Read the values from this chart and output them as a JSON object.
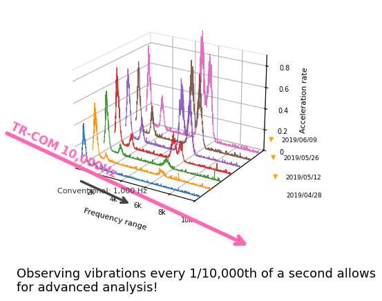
{
  "ylabel_3d": "Acceleration rate",
  "xlabel_3d": "Frequency range",
  "dates": [
    "2019/04/28",
    "2019/05/12",
    "2019/05/26",
    "2019/06/09"
  ],
  "line_colors": [
    "#1a6faf",
    "#ff8c00",
    "#2e8b22",
    "#cc2222",
    "#8855bb",
    "#7a5040",
    "#dd66bb"
  ],
  "arrow_color_conv": "#444444",
  "arrow_color_trcom": "#ff69b4",
  "conv_label": "Conventional: 1,000 Hz",
  "trcom_label": "TR-COM 10,000Hz",
  "caption": "Observing vibrations every 1/10,000th of a second allows\nfor advanced analysis!",
  "caption_fontsize": 13,
  "background_color": "#ffffff",
  "n_points": 800,
  "x_max": 10000,
  "date_marker_color": "#FFA500",
  "elev": 22,
  "azim": -58
}
